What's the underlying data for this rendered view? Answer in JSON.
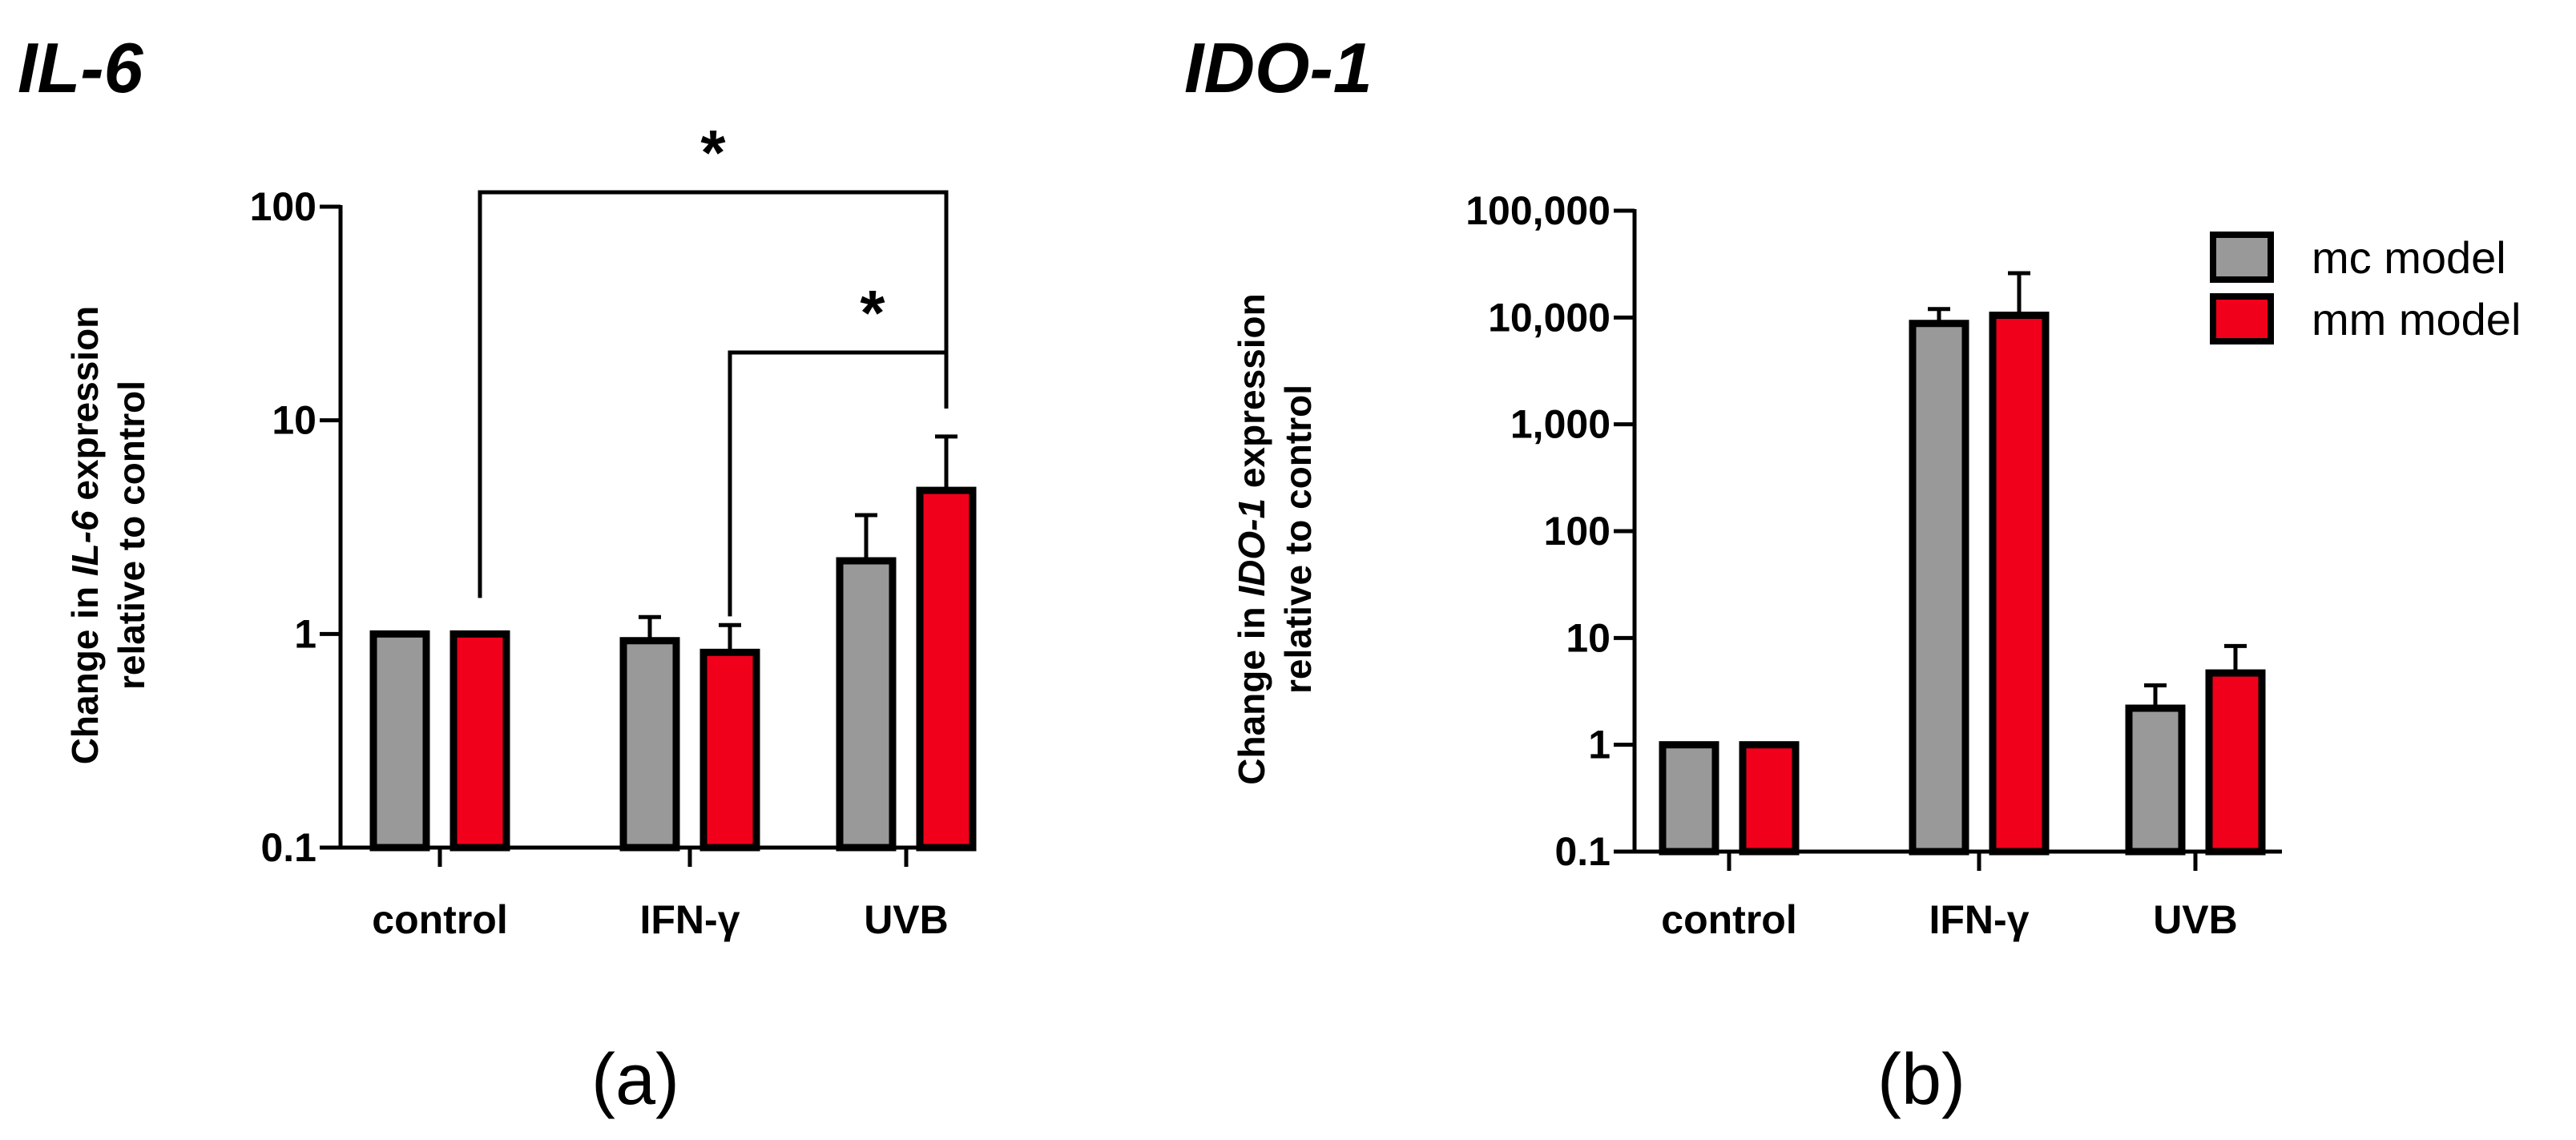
{
  "colors": {
    "mc": "#999999",
    "mm": "#f0001a",
    "stroke": "#000000"
  },
  "legend": {
    "mc": "mc model",
    "mm": "mm model"
  },
  "chart_data": [
    {
      "id": "a",
      "type": "bar",
      "scale": "log10",
      "title": "IL-6",
      "caption": "(a)",
      "ylabel_line1": [
        "Change in ",
        "IL-6",
        " expression"
      ],
      "ylabel_line2": "relative to control",
      "xlabel": "",
      "ylim": [
        0.1,
        100
      ],
      "yticks": [
        0.1,
        1,
        10,
        100
      ],
      "ytick_labels": [
        "0.1",
        "1",
        "10",
        "100"
      ],
      "categories": [
        "control",
        "IFN-γ",
        "UVB"
      ],
      "series": [
        {
          "name": "mc model",
          "values": [
            1.0,
            0.93,
            2.2
          ],
          "error_upper": [
            1.0,
            1.2,
            3.6
          ]
        },
        {
          "name": "mm model",
          "values": [
            1.0,
            0.82,
            4.7
          ],
          "error_upper": [
            1.0,
            1.1,
            8.4
          ]
        }
      ],
      "significance": [
        {
          "from_category": 0,
          "to_category": 2,
          "series": 1,
          "label": "*"
        },
        {
          "from_category": 1,
          "to_category": 2,
          "series": 1,
          "label": "*"
        }
      ]
    },
    {
      "id": "b",
      "type": "bar",
      "scale": "log10",
      "title": "IDO-1",
      "caption": "(b)",
      "ylabel_line1": [
        "Change in ",
        "IDO-1",
        " expression"
      ],
      "ylabel_line2": "relative to control",
      "xlabel": "",
      "ylim": [
        0.1,
        100000
      ],
      "yticks": [
        0.1,
        1,
        10,
        100,
        1000,
        10000,
        100000
      ],
      "ytick_labels": [
        "0.1",
        "1",
        "10",
        "100",
        "1,000",
        "10,000",
        "100,000"
      ],
      "categories": [
        "control",
        "IFN-γ",
        "UVB"
      ],
      "series": [
        {
          "name": "mc model",
          "values": [
            1.0,
            8800,
            2.2
          ],
          "error_upper": [
            1.0,
            12000,
            3.6
          ]
        },
        {
          "name": "mm model",
          "values": [
            1.0,
            10500,
            4.7
          ],
          "error_upper": [
            1.0,
            26000,
            8.4
          ]
        }
      ],
      "legend_position": "top-right"
    }
  ]
}
